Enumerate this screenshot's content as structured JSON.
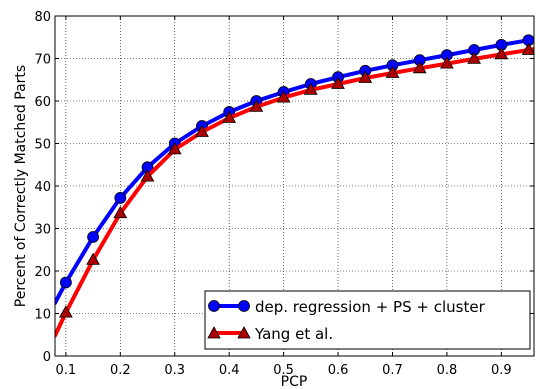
{
  "chart_data": {
    "type": "line",
    "xlabel": "PCP",
    "ylabel": "Percent of Correctly Matched Parts",
    "xlim": [
      0.08,
      0.96
    ],
    "ylim": [
      0,
      80
    ],
    "xticks": [
      "0.1",
      "0.2",
      "0.3",
      "0.4",
      "0.5",
      "0.6",
      "0.7",
      "0.8",
      "0.9"
    ],
    "yticks": [
      "0",
      "10",
      "20",
      "30",
      "40",
      "50",
      "60",
      "70",
      "80"
    ],
    "grid": true,
    "legend_position": "lower-right",
    "series": [
      {
        "name": "dep. regression + PS + cluster",
        "color": "#0000ff",
        "marker": "circle",
        "marker_color": "#0000ff",
        "x": [
          0.08,
          0.1,
          0.15,
          0.2,
          0.25,
          0.3,
          0.35,
          0.4,
          0.45,
          0.5,
          0.55,
          0.6,
          0.65,
          0.7,
          0.75,
          0.8,
          0.85,
          0.9,
          0.95,
          0.96
        ],
        "y": [
          12.5,
          17.3,
          28.0,
          37.2,
          44.4,
          50.0,
          54.1,
          57.4,
          60.0,
          62.1,
          64.0,
          65.6,
          67.1,
          68.4,
          69.6,
          70.8,
          72.0,
          73.2,
          74.3,
          74.5
        ],
        "marker_x": [
          0.1,
          0.15,
          0.2,
          0.25,
          0.3,
          0.35,
          0.4,
          0.45,
          0.5,
          0.55,
          0.6,
          0.65,
          0.7,
          0.75,
          0.8,
          0.85,
          0.9,
          0.95
        ]
      },
      {
        "name": "Yang et al.",
        "color": "#ff0000",
        "marker": "triangle",
        "marker_color": "#aa0000",
        "x": [
          0.08,
          0.1,
          0.15,
          0.2,
          0.25,
          0.3,
          0.35,
          0.4,
          0.45,
          0.5,
          0.55,
          0.6,
          0.65,
          0.7,
          0.75,
          0.8,
          0.85,
          0.9,
          0.95,
          0.96
        ],
        "y": [
          4.8,
          10.2,
          22.6,
          33.6,
          42.2,
          48.6,
          52.7,
          56.0,
          58.6,
          60.8,
          62.6,
          64.0,
          65.4,
          66.6,
          67.7,
          68.8,
          69.9,
          71.0,
          72.0,
          72.2
        ],
        "marker_x": [
          0.1,
          0.15,
          0.2,
          0.25,
          0.3,
          0.35,
          0.4,
          0.45,
          0.5,
          0.55,
          0.6,
          0.65,
          0.7,
          0.75,
          0.8,
          0.85,
          0.9,
          0.95
        ]
      }
    ]
  }
}
